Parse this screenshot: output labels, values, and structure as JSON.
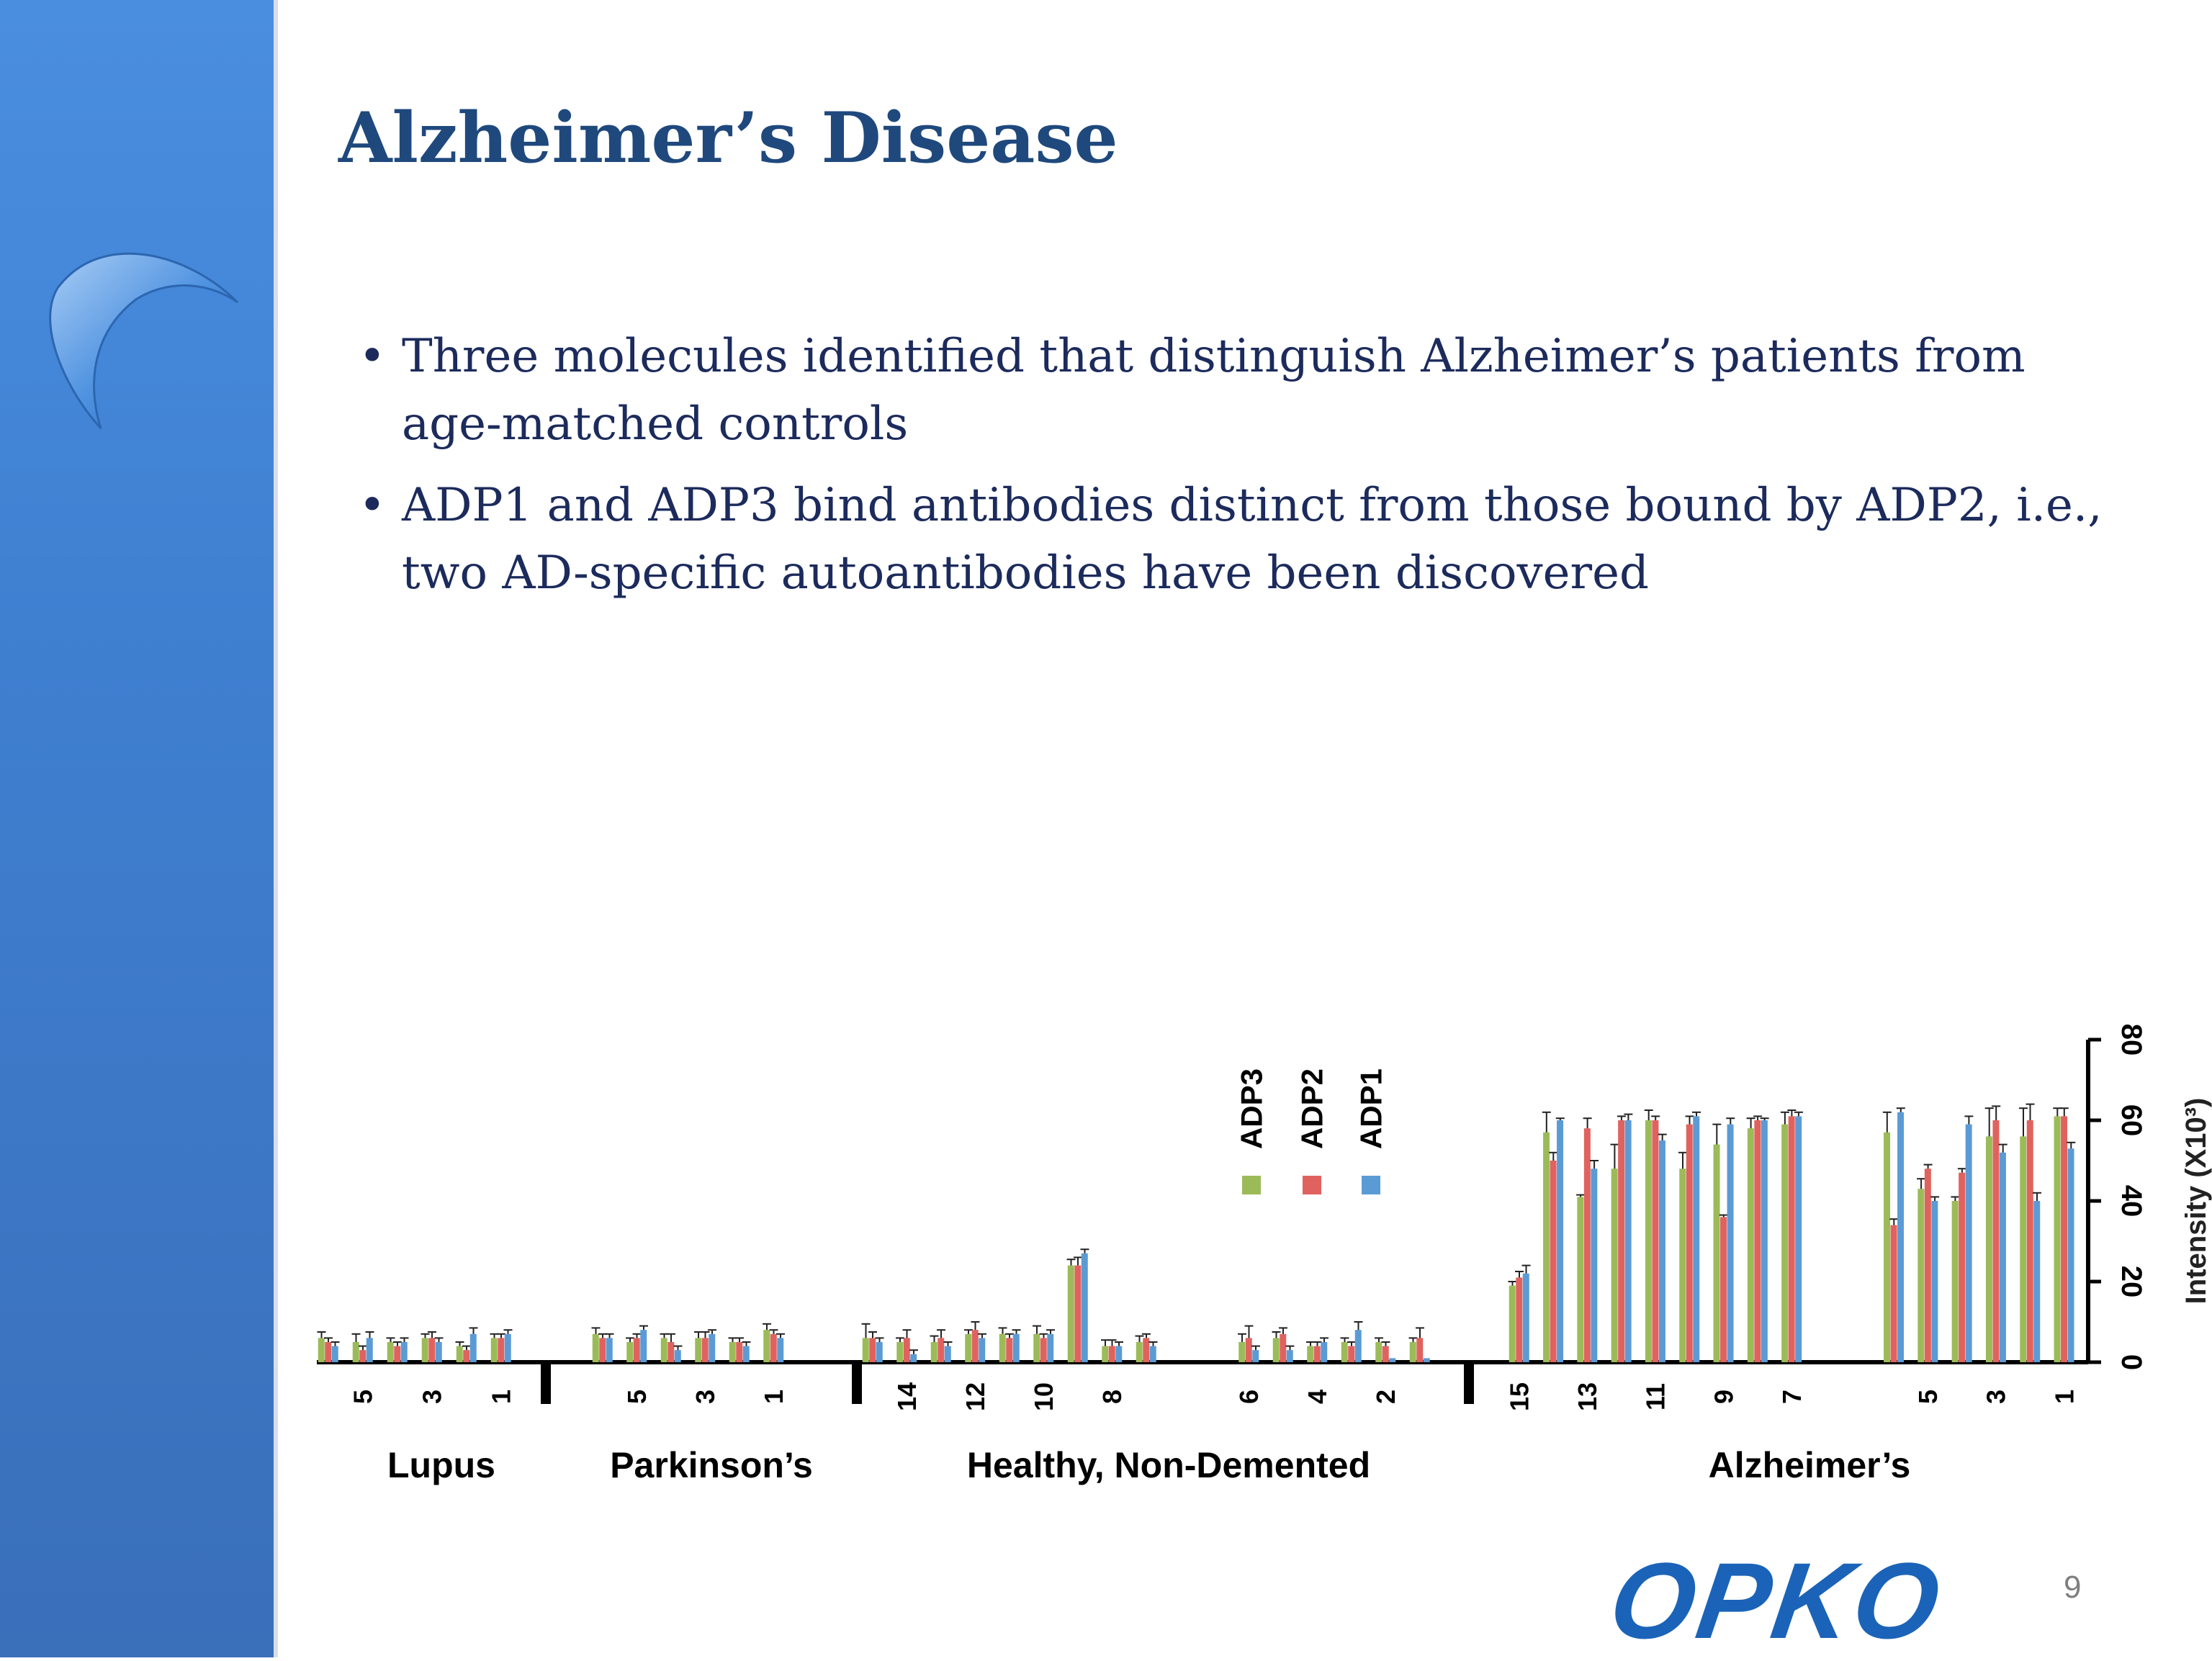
{
  "slide": {
    "title": "Alzheimer’s Disease",
    "bullets": [
      "Three molecules identified that distinguish Alzheimer’s patients from age-matched controls",
      "ADP1 and ADP3 bind antibodies distinct from those bound by ADP2, i.e., two AD-specific autoantibodies have been discovered"
    ],
    "bullet_marker": "•",
    "page_number": "9",
    "logo_text": "OPKO",
    "colors": {
      "sidebar": "#3f7fd0",
      "title": "#1f497d",
      "text": "#1c2b5c",
      "logo": "#1b63b8"
    }
  },
  "chart_data": {
    "type": "bar",
    "ylabel": "Intensity (X10³)",
    "ylim": [
      0,
      80
    ],
    "yticks": [
      0,
      20,
      40,
      60,
      80
    ],
    "legend": [
      "ADP3",
      "ADP2",
      "ADP1"
    ],
    "legend_placement": "center",
    "colors": {
      "ADP3": "#9bbb59",
      "ADP2": "#e0625f",
      "ADP1": "#5b9bd5"
    },
    "groups": [
      {
        "name": "Lupus",
        "tick_labels": [
          "",
          "5",
          "",
          "3",
          "",
          "1"
        ],
        "samples": [
          {
            "values": [
              6,
              5,
              4
            ],
            "errors": [
              1.5,
              1,
              1
            ]
          },
          {
            "values": [
              5,
              3,
              6
            ],
            "errors": [
              2,
              1,
              1.5
            ]
          },
          {
            "values": [
              5,
              4,
              5
            ],
            "errors": [
              1,
              1,
              1
            ]
          },
          {
            "values": [
              6,
              6,
              5
            ],
            "errors": [
              1,
              1.5,
              1
            ]
          },
          {
            "values": [
              4,
              3,
              7
            ],
            "errors": [
              1,
              1,
              1.5
            ]
          },
          {
            "values": [
              6,
              6,
              7
            ],
            "errors": [
              1,
              1,
              1
            ]
          }
        ]
      },
      {
        "name": "Parkinson’s",
        "tick_labels": [
          "",
          "5",
          "",
          "3",
          "",
          "1"
        ],
        "samples": [
          {
            "values": [
              7,
              6,
              6
            ],
            "errors": [
              1.5,
              1,
              1
            ]
          },
          {
            "values": [
              5,
              6,
              8
            ],
            "errors": [
              1,
              1,
              1
            ]
          },
          {
            "values": [
              6,
              5,
              3
            ],
            "errors": [
              1,
              2,
              1
            ]
          },
          {
            "values": [
              6,
              6,
              7
            ],
            "errors": [
              1.5,
              1.5,
              1
            ]
          },
          {
            "values": [
              5,
              5,
              4
            ],
            "errors": [
              1,
              1,
              1
            ]
          },
          {
            "values": [
              8,
              7,
              6
            ],
            "errors": [
              1.5,
              1,
              1
            ]
          }
        ]
      },
      {
        "name": "Healthy, Non-Demented",
        "tick_labels": [
          "",
          "14",
          "",
          "12",
          "",
          "10",
          "",
          "8",
          "",
          "",
          "",
          "6",
          "",
          "4",
          "",
          "2",
          ""
        ],
        "samples": [
          {
            "values": [
              6,
              6,
              5
            ],
            "errors": [
              3.5,
              1.5,
              1
            ]
          },
          {
            "values": [
              5,
              6,
              2
            ],
            "errors": [
              1,
              2,
              1
            ]
          },
          {
            "values": [
              5,
              6,
              4
            ],
            "errors": [
              1.5,
              2,
              1
            ]
          },
          {
            "values": [
              7,
              8,
              6
            ],
            "errors": [
              1,
              2,
              1
            ]
          },
          {
            "values": [
              7,
              6,
              7
            ],
            "errors": [
              1.5,
              1,
              1
            ]
          },
          {
            "values": [
              7,
              6,
              7
            ],
            "errors": [
              2,
              1,
              1
            ]
          },
          {
            "values": [
              24,
              24,
              27
            ],
            "errors": [
              1.5,
              2,
              1
            ]
          },
          {
            "values": [
              4,
              4,
              4
            ],
            "errors": [
              1.5,
              1.5,
              1
            ]
          },
          {
            "values": [
              5,
              6,
              4
            ],
            "errors": [
              1.5,
              1,
              1
            ]
          },
          {
            "values": [
              0,
              0,
              0
            ],
            "errors": [
              0,
              0,
              0
            ]
          },
          {
            "values": [
              0,
              0,
              0
            ],
            "errors": [
              0,
              0,
              0
            ]
          },
          {
            "values": [
              5,
              6,
              3
            ],
            "errors": [
              2,
              3,
              1
            ]
          },
          {
            "values": [
              6,
              7,
              3
            ],
            "errors": [
              1.5,
              1.5,
              1
            ]
          },
          {
            "values": [
              4,
              4,
              5
            ],
            "errors": [
              1,
              1,
              1
            ]
          },
          {
            "values": [
              5,
              4,
              8
            ],
            "errors": [
              1,
              1,
              2
            ]
          },
          {
            "values": [
              5,
              4,
              1
            ],
            "errors": [
              1,
              1,
              0
            ]
          },
          {
            "values": [
              5,
              6,
              1
            ],
            "errors": [
              1,
              2.5,
              0
            ]
          }
        ]
      },
      {
        "name": "Alzheimer’s",
        "tick_labels": [
          "15",
          "",
          "13",
          "",
          "11",
          "",
          "9",
          "",
          "7",
          "",
          "",
          "",
          "5",
          "",
          "3",
          "",
          "1"
        ],
        "samples": [
          {
            "values": [
              19,
              21,
              22
            ],
            "errors": [
              1,
              1.5,
              2
            ]
          },
          {
            "values": [
              57,
              50,
              60
            ],
            "errors": [
              5,
              2,
              0.5
            ]
          },
          {
            "values": [
              41,
              58,
              48
            ],
            "errors": [
              0.5,
              2.5,
              2
            ]
          },
          {
            "values": [
              48,
              60,
              60
            ],
            "errors": [
              6,
              1,
              1.5
            ]
          },
          {
            "values": [
              60,
              60,
              55
            ],
            "errors": [
              2.5,
              1,
              1.5
            ]
          },
          {
            "values": [
              48,
              59,
              61
            ],
            "errors": [
              4,
              2,
              1
            ]
          },
          {
            "values": [
              54,
              36,
              59
            ],
            "errors": [
              5,
              0.5,
              1.5
            ]
          },
          {
            "values": [
              58,
              60,
              60
            ],
            "errors": [
              2.5,
              1,
              0.5
            ]
          },
          {
            "values": [
              59,
              61,
              61
            ],
            "errors": [
              3,
              1.5,
              1
            ]
          },
          {
            "values": [
              0,
              0,
              0
            ],
            "errors": [
              0,
              0,
              0
            ]
          },
          {
            "values": [
              0,
              0,
              0
            ],
            "errors": [
              0,
              0,
              0
            ]
          },
          {
            "values": [
              57,
              34,
              62
            ],
            "errors": [
              5,
              1.5,
              1
            ]
          },
          {
            "values": [
              43,
              48,
              40
            ],
            "errors": [
              2.5,
              1,
              1
            ]
          },
          {
            "values": [
              40,
              47,
              59
            ],
            "errors": [
              1,
              1,
              2
            ]
          },
          {
            "values": [
              56,
              60,
              52
            ],
            "errors": [
              7,
              3.5,
              2
            ]
          },
          {
            "values": [
              56,
              60,
              40
            ],
            "errors": [
              7,
              4,
              2
            ]
          },
          {
            "values": [
              61,
              61,
              53
            ],
            "errors": [
              2,
              2,
              1.5
            ]
          }
        ]
      }
    ]
  }
}
